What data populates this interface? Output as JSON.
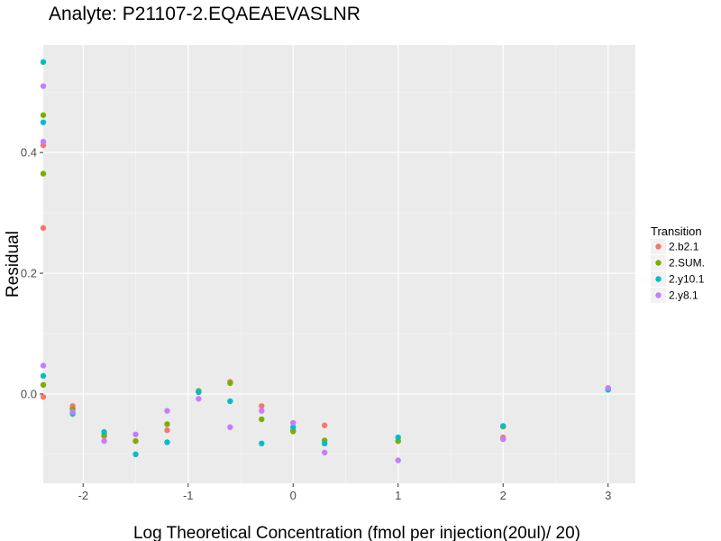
{
  "chart_data": {
    "type": "scatter",
    "title": "Analyte: P21107-2.EQAEAEVASLNR",
    "xlabel": "Log Theoretical Concentration (fmol per injection(20ul)/ 20)",
    "ylabel": "Residual",
    "xlim": [
      -2.38,
      3.26
    ],
    "ylim": [
      -0.148,
      0.578
    ],
    "x_ticks": [
      -2,
      -1,
      0,
      1,
      2,
      3
    ],
    "x_tick_labels": [
      "-2",
      "-1",
      "0",
      "1",
      "2",
      "3"
    ],
    "y_ticks": [
      0.0,
      0.2,
      0.4
    ],
    "y_tick_labels": [
      "0.0",
      "0.2",
      "0.4"
    ],
    "grid": true,
    "legend": {
      "title": "Transition",
      "placement": "right"
    },
    "series": [
      {
        "name": "2.b2.1",
        "color": "#f8766d",
        "points": [
          [
            -2.38,
            0.412
          ],
          [
            -2.38,
            0.275
          ],
          [
            -2.38,
            -0.005
          ],
          [
            -2.1,
            -0.02
          ],
          [
            -1.8,
            -0.07
          ],
          [
            -1.5,
            -0.078
          ],
          [
            -1.2,
            -0.06
          ],
          [
            -0.9,
            0.003
          ],
          [
            -0.6,
            0.02
          ],
          [
            -0.3,
            -0.02
          ],
          [
            0.0,
            -0.06
          ],
          [
            0.3,
            -0.052
          ],
          [
            1.0,
            -0.078
          ],
          [
            2.0,
            -0.072
          ],
          [
            3.0,
            0.008
          ]
        ]
      },
      {
        "name": "2.SUM.",
        "color": "#7cae00",
        "points": [
          [
            -2.38,
            0.462
          ],
          [
            -2.38,
            0.365
          ],
          [
            -2.38,
            0.015
          ],
          [
            -2.1,
            -0.025
          ],
          [
            -1.8,
            -0.068
          ],
          [
            -1.5,
            -0.078
          ],
          [
            -1.2,
            -0.05
          ],
          [
            -0.9,
            0.005
          ],
          [
            -0.6,
            0.018
          ],
          [
            -0.3,
            -0.042
          ],
          [
            0.0,
            -0.062
          ],
          [
            0.3,
            -0.077
          ],
          [
            1.0,
            -0.078
          ],
          [
            2.0,
            -0.054
          ],
          [
            3.0,
            0.009
          ]
        ]
      },
      {
        "name": "2.y10.1",
        "color": "#00bfc4",
        "points": [
          [
            -2.38,
            0.55
          ],
          [
            -2.38,
            0.45
          ],
          [
            -2.38,
            0.03
          ],
          [
            -2.1,
            -0.033
          ],
          [
            -1.8,
            -0.063
          ],
          [
            -1.5,
            -0.1
          ],
          [
            -1.2,
            -0.08
          ],
          [
            -0.9,
            0.003
          ],
          [
            -0.6,
            -0.012
          ],
          [
            -0.3,
            -0.082
          ],
          [
            0.0,
            -0.055
          ],
          [
            0.3,
            -0.082
          ],
          [
            1.0,
            -0.072
          ],
          [
            2.0,
            -0.053
          ],
          [
            3.0,
            0.007
          ]
        ]
      },
      {
        "name": "2.y8.1",
        "color": "#c77cff",
        "points": [
          [
            -2.38,
            0.51
          ],
          [
            -2.38,
            0.418
          ],
          [
            -2.38,
            0.047
          ],
          [
            -2.1,
            -0.03
          ],
          [
            -1.8,
            -0.078
          ],
          [
            -1.5,
            -0.067
          ],
          [
            -1.2,
            -0.028
          ],
          [
            -0.9,
            -0.008
          ],
          [
            -0.6,
            -0.055
          ],
          [
            -0.3,
            -0.028
          ],
          [
            0.0,
            -0.048
          ],
          [
            0.3,
            -0.097
          ],
          [
            1.0,
            -0.11
          ],
          [
            2.0,
            -0.075
          ],
          [
            3.0,
            0.01
          ]
        ]
      }
    ]
  }
}
